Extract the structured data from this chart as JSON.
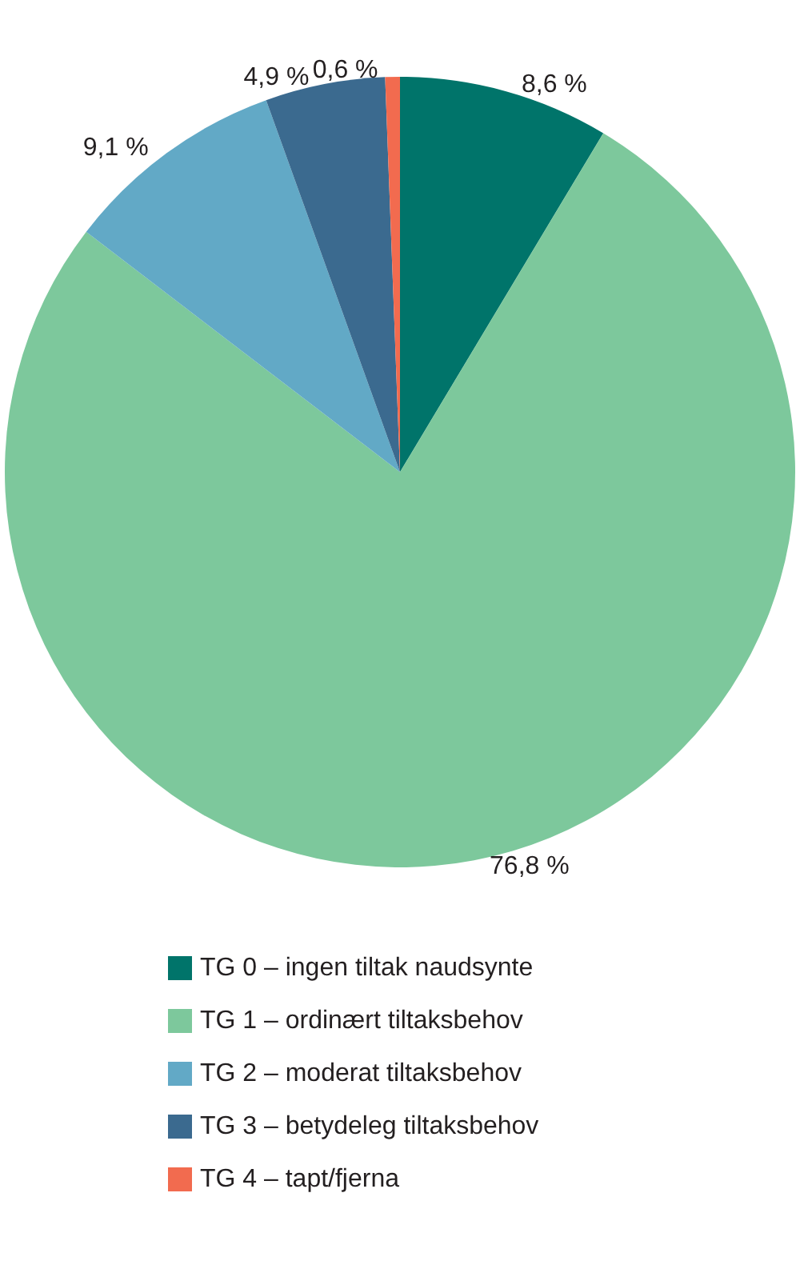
{
  "chart_data": {
    "type": "pie",
    "categories": [
      "TG 0 – ingen tiltak naudsynte",
      "TG 1 – ordinært tiltaksbehov",
      "TG 2 – moderat tiltaksbehov",
      "TG 3 – betydeleg tiltaksbehov",
      "TG 4 – tapt/fjerna"
    ],
    "values": [
      8.6,
      76.8,
      9.1,
      4.9,
      0.6
    ],
    "value_labels": [
      "8,6 %",
      "76,8 %",
      "9,1 %",
      "4,9 %",
      "0,6 %"
    ],
    "colors": [
      "#00746a",
      "#7dc89c",
      "#62a9c6",
      "#3b6a8f",
      "#f26b4f"
    ],
    "legend": "bottom"
  }
}
